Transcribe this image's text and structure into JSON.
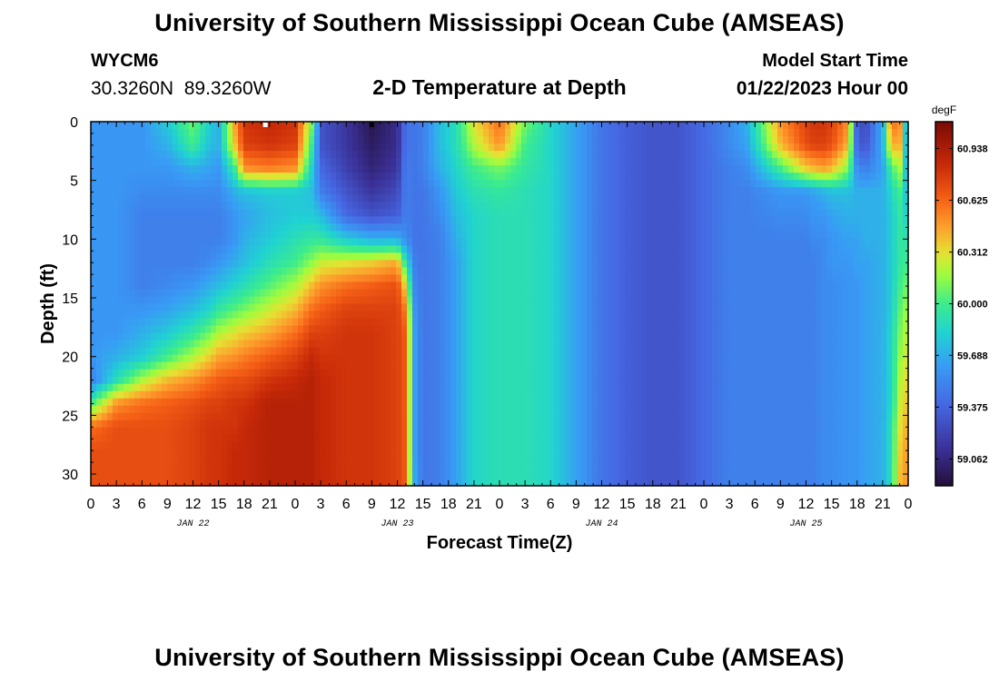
{
  "header": {
    "title": "University of Southern Mississippi Ocean Cube (AMSEAS)",
    "station_id": "WYCM6",
    "coordinates": "30.3260N  89.3260W",
    "plot_title": "2-D Temperature at Depth",
    "model_start_label": "Model Start Time",
    "model_start_value": "01/22/2023 Hour 00"
  },
  "footer": {
    "title": "University of Southern Mississippi Ocean Cube (AMSEAS)"
  },
  "chart_data": {
    "type": "heatmap",
    "title": "2-D Temperature at Depth",
    "xlabel": "Forecast Time(Z)",
    "ylabel": "Depth (ft)",
    "x_hours_range": [
      0,
      96
    ],
    "x_tick_labels": [
      "0",
      "3",
      "6",
      "9",
      "12",
      "15",
      "18",
      "21",
      "0",
      "3",
      "6",
      "9",
      "12",
      "15",
      "18",
      "21",
      "0",
      "3",
      "6",
      "9",
      "12",
      "15",
      "18",
      "21",
      "0",
      "3",
      "6",
      "9",
      "12",
      "15",
      "18",
      "21",
      "0"
    ],
    "date_labels": [
      {
        "label": "JAN 22",
        "hour": 12
      },
      {
        "label": "JAN 23",
        "hour": 36
      },
      {
        "label": "JAN 24",
        "hour": 60
      },
      {
        "label": "JAN 25",
        "hour": 84
      }
    ],
    "ylim": [
      0,
      31
    ],
    "y_ticks": [
      0,
      5,
      10,
      15,
      20,
      25,
      30
    ],
    "y_inverted": true,
    "colorbar": {
      "unit": "degF",
      "range": [
        58.9,
        61.1
      ],
      "tick_labels": [
        "60.938",
        "60.625",
        "60.312",
        "60.000",
        "59.688",
        "59.375",
        "59.062"
      ],
      "tick_values": [
        60.938,
        60.625,
        60.312,
        60.0,
        59.688,
        59.375,
        59.062
      ]
    },
    "surface_markers": [
      {
        "hour": 20.5,
        "color": "#ffffff"
      },
      {
        "hour": 33,
        "color": "#000000"
      }
    ],
    "temperature_degF": {
      "hours": [
        0,
        3,
        6,
        9,
        12,
        14,
        15,
        17,
        18,
        21,
        24,
        26,
        27,
        30,
        33,
        36,
        37,
        38,
        39,
        41,
        43,
        45,
        48,
        51,
        54,
        57,
        60,
        63,
        66,
        69,
        72,
        75,
        77,
        81,
        84,
        85,
        86,
        87,
        89,
        90,
        91,
        93,
        94,
        95,
        96
      ],
      "depths_ft": [
        0,
        2,
        4,
        6,
        8,
        10,
        12,
        14,
        16,
        18,
        20,
        22,
        24,
        26,
        28,
        31
      ],
      "columns": [
        [
          59.6,
          59.6,
          59.6,
          59.6,
          59.6,
          59.6,
          59.6,
          59.6,
          59.6,
          59.6,
          59.6,
          59.5,
          60.0,
          60.6,
          60.7,
          60.7
        ],
        [
          59.6,
          59.6,
          59.6,
          59.6,
          59.6,
          59.6,
          59.6,
          59.6,
          59.6,
          59.6,
          59.7,
          59.9,
          60.5,
          60.7,
          60.7,
          60.7
        ],
        [
          59.6,
          59.6,
          59.6,
          59.55,
          59.5,
          59.5,
          59.5,
          59.5,
          59.6,
          59.7,
          59.8,
          60.2,
          60.6,
          60.7,
          60.7,
          60.7
        ],
        [
          59.8,
          59.7,
          59.6,
          59.55,
          59.5,
          59.5,
          59.5,
          59.55,
          59.65,
          59.8,
          60.0,
          60.4,
          60.65,
          60.7,
          60.7,
          60.7
        ],
        [
          60.1,
          60.0,
          59.7,
          59.55,
          59.5,
          59.5,
          59.5,
          59.6,
          59.75,
          59.95,
          60.2,
          60.5,
          60.7,
          60.75,
          60.75,
          60.75
        ],
        [
          59.8,
          59.75,
          59.65,
          59.55,
          59.5,
          59.5,
          59.55,
          59.7,
          59.85,
          60.1,
          60.35,
          60.6,
          60.75,
          60.8,
          60.8,
          60.8
        ],
        [
          59.7,
          59.7,
          59.6,
          59.55,
          59.5,
          59.5,
          59.6,
          59.75,
          59.95,
          60.2,
          60.45,
          60.65,
          60.75,
          60.8,
          60.8,
          60.8
        ],
        [
          60.5,
          60.4,
          60.0,
          59.7,
          59.6,
          59.6,
          59.7,
          59.85,
          60.05,
          60.3,
          60.5,
          60.7,
          60.8,
          60.8,
          60.85,
          60.85
        ],
        [
          60.8,
          60.75,
          60.5,
          59.75,
          59.65,
          59.7,
          59.75,
          59.9,
          60.1,
          60.35,
          60.55,
          60.7,
          60.8,
          60.85,
          60.85,
          60.85
        ],
        [
          60.85,
          60.8,
          60.55,
          59.8,
          59.75,
          59.8,
          59.9,
          60.05,
          60.25,
          60.45,
          60.65,
          60.8,
          60.9,
          60.9,
          60.9,
          60.9
        ],
        [
          60.8,
          60.75,
          60.5,
          59.8,
          59.8,
          59.9,
          60.0,
          60.2,
          60.4,
          60.6,
          60.75,
          60.85,
          60.9,
          60.9,
          60.9,
          60.9
        ],
        [
          60.1,
          59.95,
          59.8,
          59.75,
          59.8,
          59.95,
          60.15,
          60.4,
          60.6,
          60.75,
          60.85,
          60.9,
          60.9,
          60.9,
          60.9,
          60.9
        ],
        [
          59.3,
          59.3,
          59.4,
          59.5,
          59.75,
          59.95,
          60.25,
          60.5,
          60.65,
          60.75,
          60.8,
          60.85,
          60.85,
          60.85,
          60.85,
          60.85
        ],
        [
          59.15,
          59.15,
          59.2,
          59.3,
          59.4,
          59.8,
          60.3,
          60.6,
          60.75,
          60.8,
          60.8,
          60.8,
          60.8,
          60.8,
          60.8,
          60.8
        ],
        [
          58.95,
          59.0,
          59.05,
          59.15,
          59.3,
          59.7,
          60.35,
          60.65,
          60.75,
          60.8,
          60.8,
          60.8,
          60.8,
          60.8,
          60.8,
          60.8
        ],
        [
          59.1,
          59.1,
          59.15,
          59.25,
          59.35,
          59.7,
          60.45,
          60.7,
          60.75,
          60.75,
          60.75,
          60.75,
          60.75,
          60.75,
          60.75,
          60.75
        ],
        [
          59.45,
          59.45,
          59.5,
          59.5,
          59.5,
          59.55,
          59.9,
          60.3,
          60.55,
          60.65,
          60.65,
          60.65,
          60.65,
          60.65,
          60.65,
          60.65
        ],
        [
          59.45,
          59.45,
          59.45,
          59.45,
          59.45,
          59.45,
          59.5,
          59.55,
          59.6,
          59.65,
          59.65,
          59.65,
          59.65,
          59.65,
          59.65,
          59.7
        ],
        [
          59.5,
          59.5,
          59.5,
          59.45,
          59.45,
          59.45,
          59.45,
          59.45,
          59.45,
          59.45,
          59.45,
          59.45,
          59.45,
          59.45,
          59.45,
          59.45
        ],
        [
          59.75,
          59.75,
          59.7,
          59.6,
          59.55,
          59.5,
          59.5,
          59.5,
          59.5,
          59.5,
          59.5,
          59.5,
          59.5,
          59.5,
          59.5,
          59.5
        ],
        [
          59.9,
          59.9,
          59.85,
          59.8,
          59.75,
          59.7,
          59.65,
          59.65,
          59.65,
          59.65,
          59.65,
          59.65,
          59.65,
          59.65,
          59.65,
          59.65
        ],
        [
          60.3,
          60.2,
          60.0,
          59.9,
          59.85,
          59.85,
          59.85,
          59.85,
          59.85,
          59.85,
          59.85,
          59.85,
          59.85,
          59.85,
          59.85,
          59.85
        ],
        [
          60.6,
          60.5,
          60.1,
          59.95,
          59.9,
          59.9,
          59.9,
          59.9,
          59.9,
          59.9,
          59.9,
          59.9,
          59.9,
          59.9,
          59.9,
          59.9
        ],
        [
          60.1,
          60.0,
          59.95,
          59.9,
          59.9,
          59.9,
          59.9,
          59.9,
          59.9,
          59.9,
          59.9,
          59.9,
          59.9,
          59.9,
          59.9,
          59.9
        ],
        [
          59.85,
          59.85,
          59.85,
          59.85,
          59.85,
          59.85,
          59.85,
          59.85,
          59.85,
          59.85,
          59.85,
          59.85,
          59.85,
          59.85,
          59.85,
          59.85
        ],
        [
          59.65,
          59.65,
          59.65,
          59.65,
          59.65,
          59.65,
          59.65,
          59.65,
          59.65,
          59.65,
          59.65,
          59.65,
          59.65,
          59.65,
          59.65,
          59.65
        ],
        [
          59.45,
          59.45,
          59.45,
          59.45,
          59.45,
          59.45,
          59.45,
          59.45,
          59.45,
          59.45,
          59.45,
          59.45,
          59.45,
          59.45,
          59.45,
          59.45
        ],
        [
          59.35,
          59.35,
          59.35,
          59.35,
          59.35,
          59.35,
          59.35,
          59.35,
          59.35,
          59.35,
          59.35,
          59.35,
          59.35,
          59.35,
          59.35,
          59.35
        ],
        [
          59.3,
          59.3,
          59.3,
          59.3,
          59.3,
          59.3,
          59.3,
          59.3,
          59.3,
          59.3,
          59.3,
          59.3,
          59.3,
          59.3,
          59.3,
          59.3
        ],
        [
          59.3,
          59.3,
          59.3,
          59.3,
          59.3,
          59.3,
          59.3,
          59.3,
          59.3,
          59.3,
          59.3,
          59.3,
          59.3,
          59.3,
          59.3,
          59.3
        ],
        [
          59.4,
          59.4,
          59.4,
          59.4,
          59.4,
          59.4,
          59.4,
          59.4,
          59.4,
          59.4,
          59.4,
          59.4,
          59.4,
          59.4,
          59.4,
          59.4
        ],
        [
          59.55,
          59.55,
          59.5,
          59.5,
          59.5,
          59.5,
          59.5,
          59.5,
          59.5,
          59.5,
          59.5,
          59.5,
          59.5,
          59.5,
          59.5,
          59.5
        ],
        [
          59.7,
          59.65,
          59.55,
          59.5,
          59.5,
          59.5,
          59.5,
          59.5,
          59.5,
          59.5,
          59.5,
          59.5,
          59.5,
          59.5,
          59.5,
          59.5
        ],
        [
          60.5,
          60.4,
          60.0,
          59.6,
          59.55,
          59.5,
          59.5,
          59.5,
          59.5,
          59.5,
          59.5,
          59.5,
          59.5,
          59.5,
          59.5,
          59.5
        ],
        [
          60.75,
          60.7,
          60.35,
          59.6,
          59.55,
          59.5,
          59.5,
          59.5,
          59.5,
          59.5,
          59.5,
          59.5,
          59.5,
          59.5,
          59.5,
          59.5
        ],
        [
          60.8,
          60.75,
          60.4,
          59.65,
          59.6,
          59.55,
          59.5,
          59.5,
          59.5,
          59.5,
          59.5,
          59.5,
          59.5,
          59.5,
          59.5,
          59.5
        ],
        [
          60.8,
          60.75,
          60.45,
          59.7,
          59.6,
          59.55,
          59.55,
          59.55,
          59.55,
          59.55,
          59.55,
          59.55,
          59.55,
          59.55,
          59.55,
          59.55
        ],
        [
          60.75,
          60.7,
          60.4,
          59.75,
          59.65,
          59.6,
          59.6,
          59.55,
          59.55,
          59.55,
          59.55,
          59.55,
          59.55,
          59.55,
          59.55,
          59.55
        ],
        [
          60.5,
          60.4,
          60.1,
          59.75,
          59.7,
          59.65,
          59.6,
          59.6,
          59.6,
          59.6,
          59.6,
          59.6,
          59.6,
          59.6,
          59.6,
          59.6
        ],
        [
          59.3,
          59.35,
          59.55,
          59.7,
          59.7,
          59.65,
          59.65,
          59.6,
          59.6,
          59.6,
          59.6,
          59.6,
          59.6,
          59.6,
          59.6,
          59.6
        ],
        [
          59.25,
          59.3,
          59.5,
          59.7,
          59.7,
          59.7,
          59.65,
          59.65,
          59.65,
          59.65,
          59.65,
          59.65,
          59.65,
          59.65,
          59.65,
          59.65
        ],
        [
          59.7,
          59.7,
          59.65,
          59.7,
          59.7,
          59.7,
          59.7,
          59.7,
          59.7,
          59.7,
          59.7,
          59.7,
          59.7,
          59.7,
          59.7,
          59.7
        ],
        [
          60.6,
          60.4,
          60.0,
          59.85,
          59.8,
          59.8,
          59.8,
          59.8,
          59.8,
          59.85,
          59.85,
          59.85,
          59.85,
          59.9,
          59.9,
          59.9
        ],
        [
          60.55,
          60.45,
          60.2,
          60.0,
          59.95,
          59.95,
          59.95,
          60.0,
          60.05,
          60.1,
          60.15,
          60.2,
          60.25,
          60.3,
          60.35,
          60.4
        ],
        [
          59.45,
          59.5,
          59.6,
          59.7,
          59.8,
          59.9,
          60.0,
          60.1,
          60.2,
          60.25,
          60.3,
          60.35,
          60.4,
          60.45,
          60.5,
          60.5
        ]
      ]
    }
  }
}
